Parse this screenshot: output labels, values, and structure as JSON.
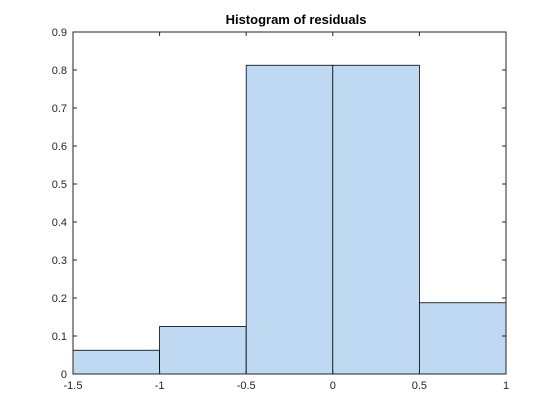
{
  "chart_data": {
    "type": "bar",
    "title": "Histogram of residuals",
    "xlabel": "",
    "ylabel": "",
    "bin_edges": [
      -1.5,
      -1,
      -0.5,
      0,
      0.5,
      1
    ],
    "values": [
      0.0625,
      0.125,
      0.8125,
      0.8125,
      0.1875
    ],
    "xlim": [
      -1.5,
      1
    ],
    "ylim": [
      0,
      0.9
    ],
    "xticks": [
      -1.5,
      -1,
      -0.5,
      0,
      0.5,
      1
    ],
    "xtick_labels": [
      "-1.5",
      "-1",
      "-0.5",
      "0",
      "0.5",
      "1"
    ],
    "yticks": [
      0,
      0.1,
      0.2,
      0.3,
      0.4,
      0.5,
      0.6,
      0.7,
      0.8,
      0.9
    ],
    "ytick_labels": [
      "0",
      "0.1",
      "0.2",
      "0.3",
      "0.4",
      "0.5",
      "0.6",
      "0.7",
      "0.8",
      "0.9"
    ],
    "grid": false,
    "colors": {
      "bar_fill": "#bfd9f2",
      "bar_edge": "#000000",
      "axis": "#262626"
    }
  }
}
